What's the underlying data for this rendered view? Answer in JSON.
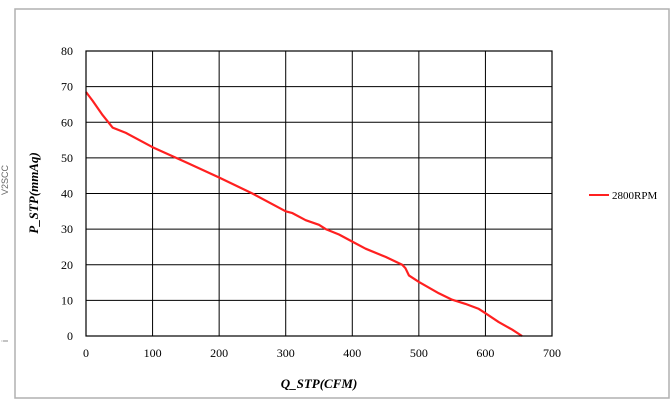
{
  "edge_marks": [
    "V2SCC",
    "i"
  ],
  "chart_data": {
    "type": "line",
    "title": "",
    "xlabel": "Q_STP(CFM)",
    "ylabel": "P_STP(mmAq)",
    "xlim": [
      0,
      700
    ],
    "ylim": [
      0,
      80
    ],
    "xticks": [
      0,
      100,
      200,
      300,
      400,
      500,
      600,
      700
    ],
    "yticks": [
      0,
      10,
      20,
      30,
      40,
      50,
      60,
      70,
      80
    ],
    "grid": true,
    "legend_position": "right",
    "series": [
      {
        "name": "2800RPM",
        "color": "#ff2020",
        "x": [
          0,
          10,
          25,
          40,
          60,
          100,
          150,
          200,
          250,
          300,
          310,
          330,
          350,
          360,
          380,
          400,
          420,
          450,
          475,
          480,
          485,
          500,
          530,
          550,
          570,
          590,
          600,
          620,
          640,
          655
        ],
        "y": [
          68.5,
          66,
          62,
          58.5,
          57,
          53,
          48.8,
          44.5,
          40,
          35,
          34.5,
          32.5,
          31.2,
          30,
          28.5,
          26.5,
          24.5,
          22.2,
          20,
          19,
          17,
          15.2,
          12,
          10.2,
          9,
          7.6,
          6.4,
          3.9,
          1.8,
          0
        ]
      }
    ]
  }
}
